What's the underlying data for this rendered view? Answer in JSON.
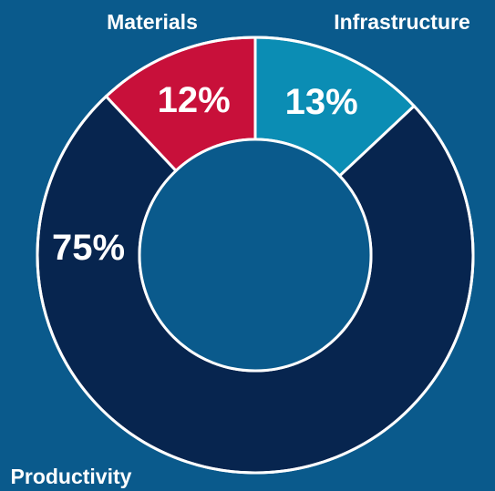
{
  "colors": {
    "background": "#0a5a8c",
    "ring_stroke": "#ffffff"
  },
  "chart_data": {
    "type": "pie",
    "donut": true,
    "categories": [
      "Infrastructure",
      "Productivity",
      "Materials"
    ],
    "values": [
      13,
      75,
      12
    ],
    "value_labels": [
      "13%",
      "75%",
      "12%"
    ],
    "colors": [
      "#0b8db4",
      "#07254f",
      "#c8103a"
    ],
    "legend_position": "category labels beside the ring"
  }
}
